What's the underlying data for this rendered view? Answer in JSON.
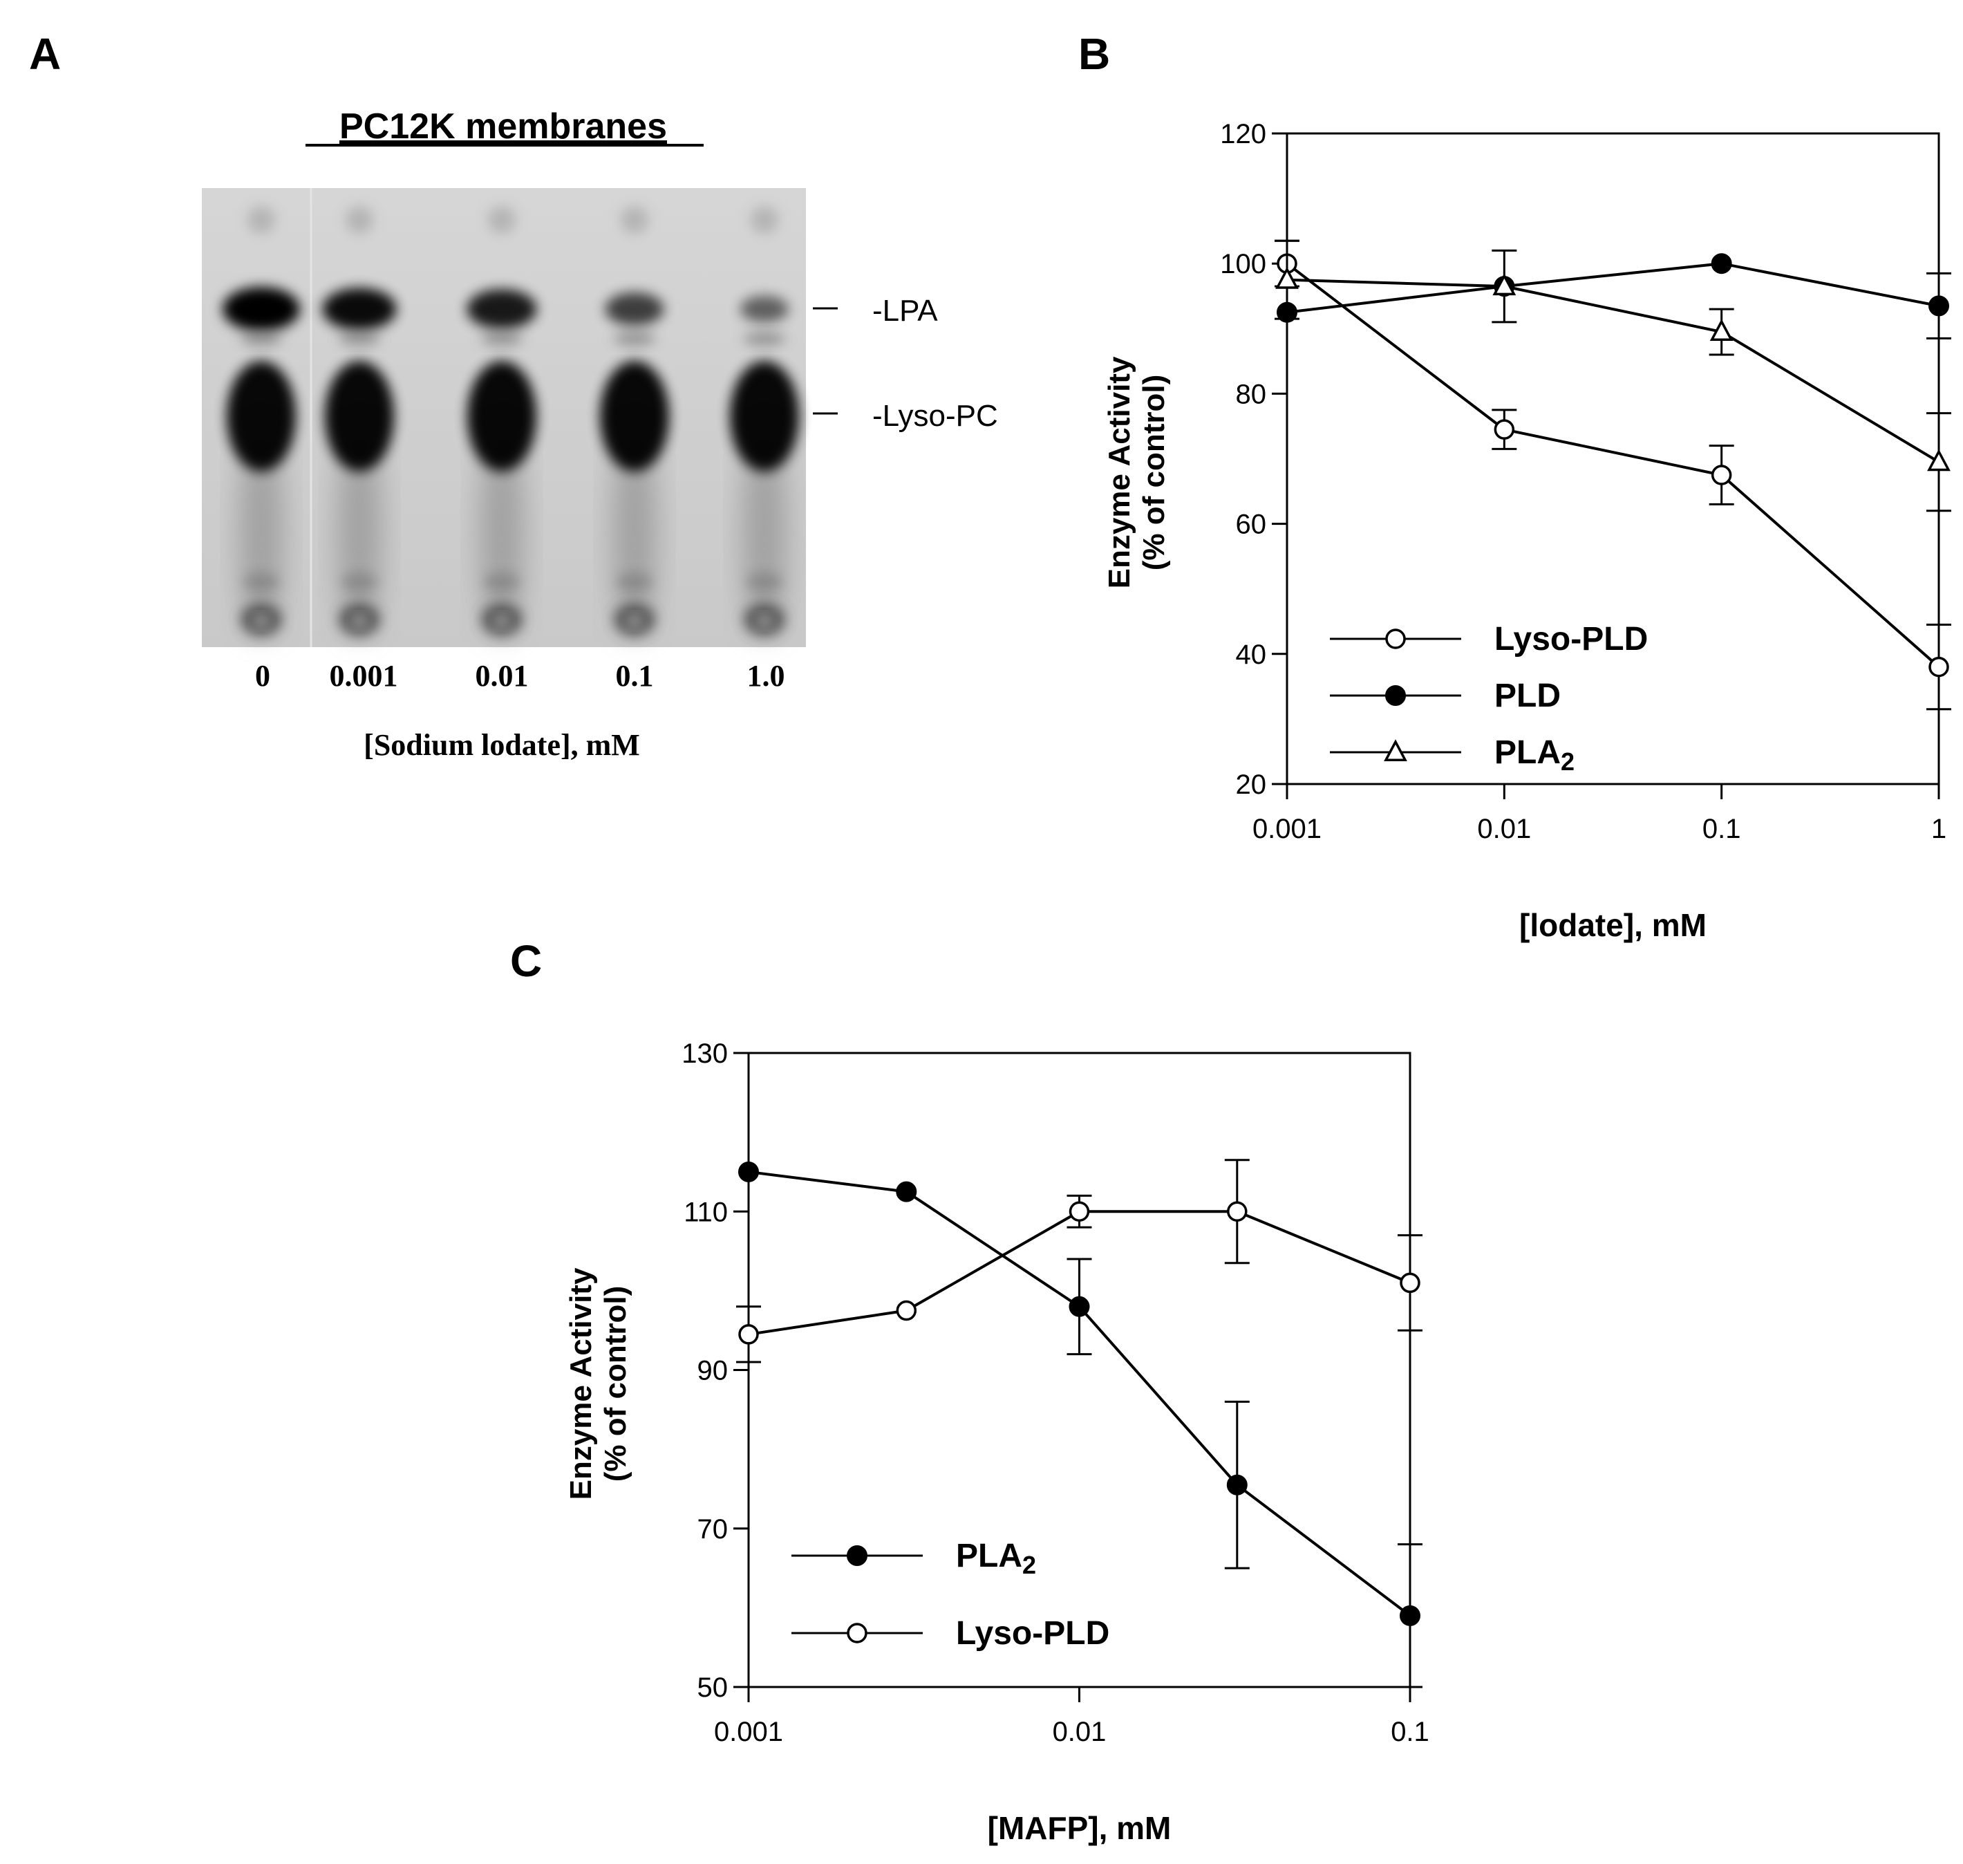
{
  "figure": {
    "panel_labels": [
      "A",
      "B",
      "C"
    ]
  },
  "panel_a": {
    "title": "PC12K membranes",
    "band_labels": [
      "-LPA",
      "-Lyso-PC"
    ],
    "lane_labels": [
      "0",
      "0.001",
      "0.01",
      "0.1",
      "1.0"
    ],
    "xlabel": "[Sodium lodate], mM",
    "lpa_intensity": [
      1.0,
      0.92,
      0.82,
      0.55,
      0.3
    ]
  },
  "chart_data": [
    {
      "panel": "B",
      "type": "line",
      "xscale": "log",
      "x": [
        0.001,
        0.01,
        0.1,
        1
      ],
      "x_tick_labels": [
        "0.001",
        "0.01",
        "0.1",
        "1"
      ],
      "xlim": [
        0.001,
        1
      ],
      "ylim": [
        20,
        120
      ],
      "y_ticks": [
        20,
        40,
        60,
        80,
        100,
        120
      ],
      "xlabel": "[lodate],  mM",
      "ylabel_line1": "Enzyme Activity",
      "ylabel_line2": "(% of control)",
      "legend_position": "bottom-left",
      "series": [
        {
          "name": "Lyso-PLD",
          "marker": "open-circle",
          "x": [
            0.001,
            0.01,
            0.1,
            1
          ],
          "values": [
            100,
            74.5,
            67.5,
            38
          ],
          "errors": [
            3.5,
            3,
            4.5,
            6.5
          ]
        },
        {
          "name": "PLD",
          "marker": "filled-circle",
          "x": [
            0.001,
            0.01,
            0.1,
            1
          ],
          "values": [
            92.5,
            96.5,
            100,
            93.5
          ],
          "errors": [
            0,
            0,
            0,
            5
          ]
        },
        {
          "name": "PLA",
          "name_subscript": "2",
          "marker": "open-triangle",
          "x": [
            0.001,
            0.01,
            0.1,
            1
          ],
          "values": [
            97.5,
            96.5,
            89.5,
            69.5
          ],
          "errors": [
            6,
            5.5,
            3.5,
            7.5
          ]
        }
      ]
    },
    {
      "panel": "C",
      "type": "line",
      "xscale": "log",
      "x_tick_values": [
        0.001,
        0.01,
        0.1
      ],
      "x_tick_labels": [
        "0.001",
        "0.01",
        "0.1"
      ],
      "xlim": [
        0.001,
        0.1
      ],
      "ylim": [
        50,
        130
      ],
      "y_ticks": [
        50,
        70,
        90,
        110,
        130
      ],
      "xlabel": "[MAFP],  mM",
      "ylabel_line1": "Enzyme Activity",
      "ylabel_line2": "(% of control)",
      "legend_position": "bottom-left",
      "series": [
        {
          "name": "PLA",
          "name_subscript": "2",
          "marker": "filled-circle",
          "x": [
            0.001,
            0.003,
            0.01,
            0.03,
            0.1
          ],
          "values": [
            115,
            112.5,
            98,
            75.5,
            59
          ],
          "errors": [
            0,
            0,
            6,
            10.5,
            9
          ]
        },
        {
          "name": "Lyso-PLD",
          "marker": "open-circle",
          "x": [
            0.001,
            0.003,
            0.01,
            0.03,
            0.1
          ],
          "values": [
            94.5,
            97.5,
            110,
            110,
            101
          ],
          "errors": [
            3.5,
            0,
            2,
            6.5,
            6
          ]
        }
      ]
    }
  ]
}
